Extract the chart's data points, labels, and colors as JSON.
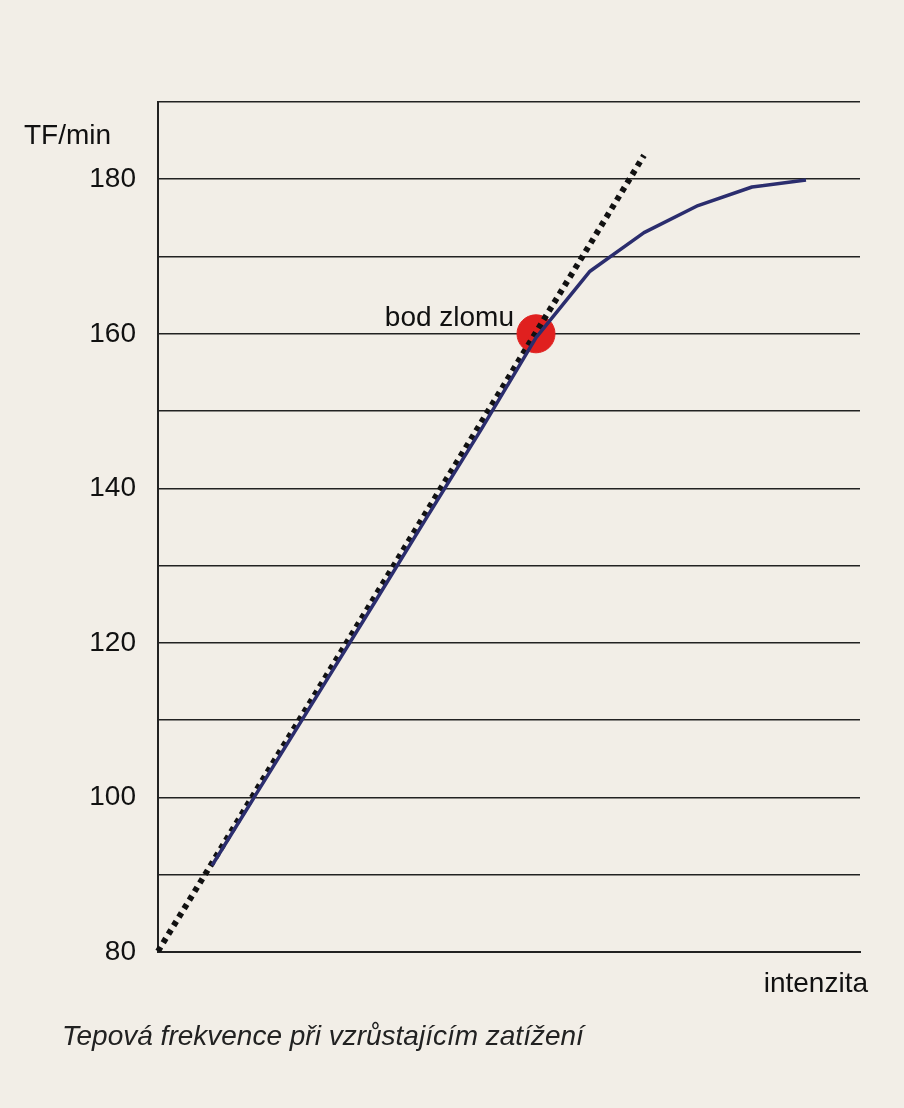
{
  "chart_data": {
    "type": "line",
    "ylabel": "TF/min",
    "xlabel": "intenzita",
    "categories": [
      null,
      null,
      null,
      null,
      null,
      null,
      null,
      null,
      null,
      null,
      null,
      null,
      null,
      null
    ],
    "ylim": [
      80,
      190
    ],
    "yticks": [
      80,
      {
        "value": 90,
        "label": null
      },
      100,
      {
        "value": 110,
        "label": null
      },
      120,
      {
        "value": 130,
        "label": null
      },
      140,
      {
        "value": 150,
        "label": null
      },
      160,
      {
        "value": 170,
        "label": null
      },
      180,
      {
        "value": 190,
        "label": null
      }
    ],
    "tick_labels": "y",
    "grid": "y",
    "legend": false,
    "marker": "none",
    "series": [
      {
        "color": "#2b2d6e",
        "line_style": "solid",
        "values": [
          null,
          91.2,
          102.5,
          113.8,
          125.1,
          136.5,
          147.8,
          159.5,
          168.1,
          173.1,
          176.6,
          179.0,
          179.9,
          null
        ]
      },
      {
        "color": "#111111",
        "line_style": "dotted",
        "values": [
          80.1,
          91.5,
          103.0,
          114.4,
          125.8,
          137.3,
          148.7,
          160.2,
          171.6,
          183.1,
          null,
          null,
          null,
          null
        ]
      },
      {
        "type": "scatter",
        "color": "#e0201f",
        "marker": "circle",
        "values": [
          null,
          null,
          null,
          null,
          null,
          null,
          null,
          160,
          null,
          null,
          null,
          null,
          null,
          null
        ]
      }
    ],
    "annotations": [
      "bod zlomu",
      "Tepová frekvence při vzrůstajícím zatížení"
    ]
  }
}
